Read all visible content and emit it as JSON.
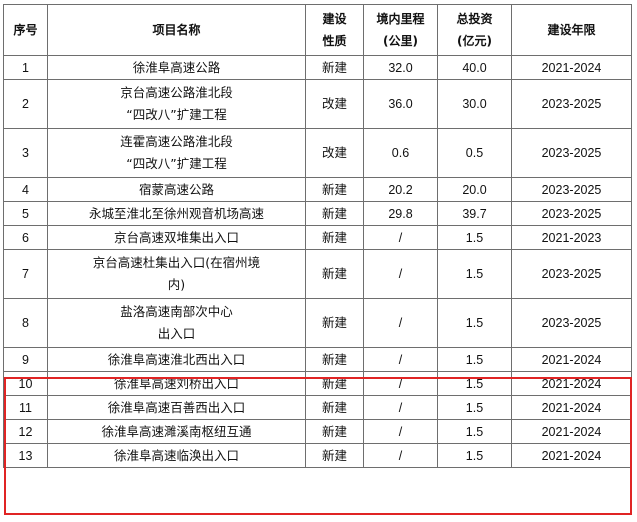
{
  "table": {
    "headers": {
      "no": "序号",
      "name": "项目名称",
      "nature": [
        "建设",
        "性质"
      ],
      "mileage": [
        "境内里程",
        "(公里)"
      ],
      "investment": [
        "总投资",
        "(亿元)"
      ],
      "period": "建设年限"
    },
    "rows": [
      {
        "no": "1",
        "name": [
          "徐淮阜高速公路"
        ],
        "nature": "新建",
        "mileage": "32.0",
        "investment": "40.0",
        "period": "2021-2024"
      },
      {
        "no": "2",
        "name": [
          "京台高速公路淮北段",
          "“四改八”扩建工程"
        ],
        "nature": "改建",
        "mileage": "36.0",
        "investment": "30.0",
        "period": "2023-2025"
      },
      {
        "no": "3",
        "name": [
          "连霍高速公路淮北段",
          "“四改八”扩建工程"
        ],
        "nature": "改建",
        "mileage": "0.6",
        "investment": "0.5",
        "period": "2023-2025"
      },
      {
        "no": "4",
        "name": [
          "宿蒙高速公路"
        ],
        "nature": "新建",
        "mileage": "20.2",
        "investment": "20.0",
        "period": "2023-2025"
      },
      {
        "no": "5",
        "name": [
          "永城至淮北至徐州观音机场高速"
        ],
        "nature": "新建",
        "mileage": "29.8",
        "investment": "39.7",
        "period": "2023-2025"
      },
      {
        "no": "6",
        "name": [
          "京台高速双堆集出入口"
        ],
        "nature": "新建",
        "mileage": "/",
        "investment": "1.5",
        "period": "2021-2023"
      },
      {
        "no": "7",
        "name": [
          "京台高速杜集出入口(在宿州境",
          "内)"
        ],
        "nature": "新建",
        "mileage": "/",
        "investment": "1.5",
        "period": "2023-2025"
      },
      {
        "no": "8",
        "name": [
          "盐洛高速南部次中心",
          "出入口"
        ],
        "nature": "新建",
        "mileage": "/",
        "investment": "1.5",
        "period": "2023-2025"
      },
      {
        "no": "9",
        "name": [
          "徐淮阜高速淮北西出入口"
        ],
        "nature": "新建",
        "mileage": "/",
        "investment": "1.5",
        "period": "2021-2024"
      },
      {
        "no": "10",
        "name": [
          "徐淮阜高速刘桥出入口"
        ],
        "nature": "新建",
        "mileage": "/",
        "investment": "1.5",
        "period": "2021-2024"
      },
      {
        "no": "11",
        "name": [
          "徐淮阜高速百善西出入口"
        ],
        "nature": "新建",
        "mileage": "/",
        "investment": "1.5",
        "period": "2021-2024"
      },
      {
        "no": "12",
        "name": [
          "徐淮阜高速濉溪南枢纽互通"
        ],
        "nature": "新建",
        "mileage": "/",
        "investment": "1.5",
        "period": "2021-2024"
      },
      {
        "no": "13",
        "name": [
          "徐淮阜高速临涣出入口"
        ],
        "nature": "新建",
        "mileage": "/",
        "investment": "1.5",
        "period": "2021-2024"
      }
    ],
    "highlight_color": "#e02424"
  }
}
